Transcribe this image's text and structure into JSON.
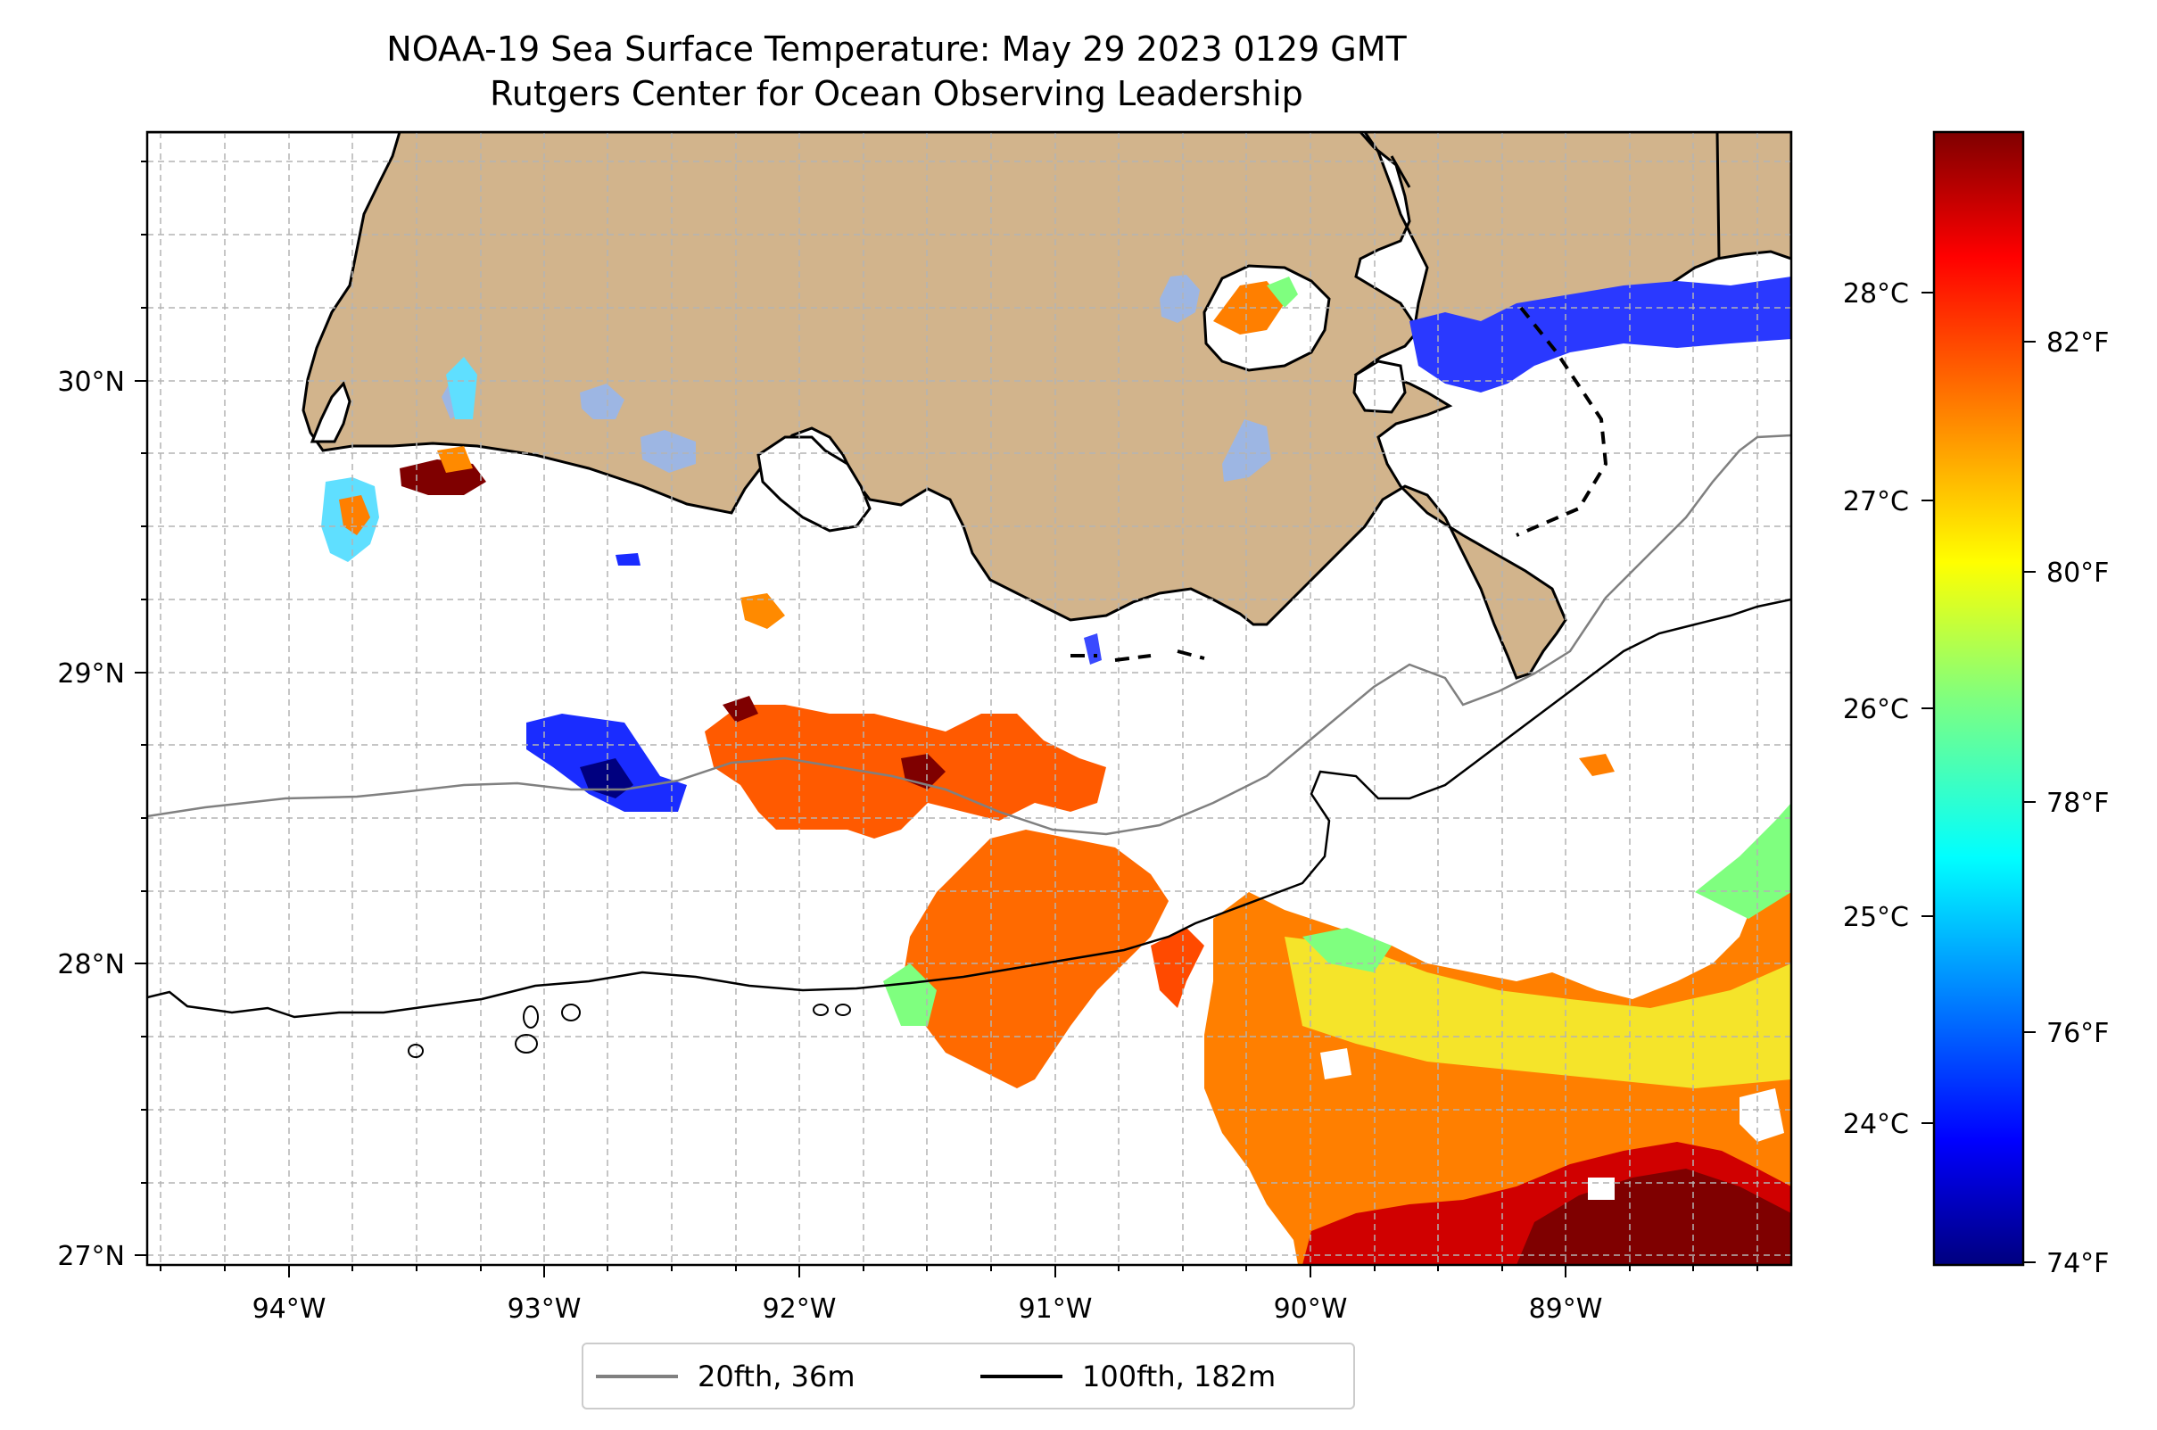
{
  "title": "NOAA-19 Sea Surface Temperature: May 29 2023 0129 GMT",
  "subtitle": "Rutgers Center for Ocean Observing Leadership",
  "lon_labels": [
    "94°W",
    "93°W",
    "92°W",
    "91°W",
    "90°W",
    "89°W"
  ],
  "lat_labels": [
    "30°N",
    "29°N",
    "28°N",
    "27°N"
  ],
  "colorbar": {
    "celsius_ticks": [
      "28°C",
      "27°C",
      "26°C",
      "25°C",
      "24°C"
    ],
    "fahrenheit_ticks": [
      "82°F",
      "80°F",
      "78°F",
      "76°F",
      "74°F"
    ],
    "colormap": "jet",
    "range_f": [
      73.9,
      84
    ]
  },
  "legend": [
    {
      "label": "20fth, 36m",
      "color": "#808080"
    },
    {
      "label": "100fth, 182m",
      "color": "#000000"
    }
  ],
  "colors": {
    "land": "#d2b48c",
    "lakes": "#9db6e3",
    "coast": "#000000"
  }
}
